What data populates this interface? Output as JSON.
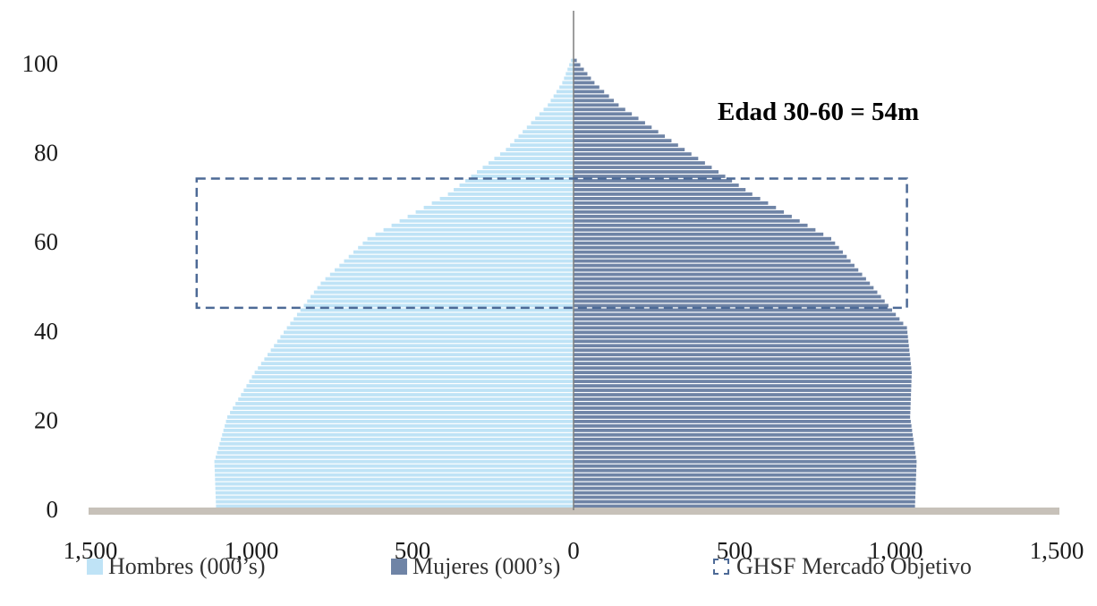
{
  "chart_data": {
    "type": "bar",
    "orientation": "horizontal-population-pyramid",
    "title": "",
    "xlabel": "",
    "ylabel": "",
    "xlim": [
      -1500,
      1500
    ],
    "ylim": [
      0,
      105
    ],
    "x_ticks": [
      {
        "value": -1500,
        "label": "1,500"
      },
      {
        "value": -1000,
        "label": "1,000"
      },
      {
        "value": -500,
        "label": "500"
      },
      {
        "value": 0,
        "label": "0"
      },
      {
        "value": 500,
        "label": "500"
      },
      {
        "value": 1000,
        "label": "1,000"
      },
      {
        "value": 1500,
        "label": "1,500"
      }
    ],
    "y_ticks": [
      {
        "value": 0,
        "label": "0"
      },
      {
        "value": 20,
        "label": "20"
      },
      {
        "value": 40,
        "label": "40"
      },
      {
        "value": 60,
        "label": "60"
      },
      {
        "value": 80,
        "label": "80"
      },
      {
        "value": 100,
        "label": "100"
      }
    ],
    "age_profile": {
      "ages": [
        0,
        10,
        20,
        30,
        40,
        50,
        60,
        70,
        80,
        90,
        95,
        100
      ],
      "hombres": [
        1110,
        1115,
        1075,
        990,
        890,
        785,
        640,
        390,
        210,
        80,
        35,
        8
      ],
      "mujeres": [
        1060,
        1065,
        1045,
        1050,
        1035,
        920,
        800,
        555,
        345,
        140,
        65,
        10
      ]
    },
    "series": [
      {
        "name": "Hombres (000’s)",
        "color": "#bfe3f6",
        "side": "left"
      },
      {
        "name": "Mujeres (000’s)",
        "color": "#6f84a6",
        "side": "right"
      }
    ],
    "target_box": {
      "name": "GHSF Mercado Objetivo",
      "x_range": [
        -1170,
        1035
      ],
      "y_range": [
        45,
        74
      ],
      "color": "#4d6a96"
    },
    "annotation": "Edad 30-60 = 54m",
    "baseline_color": "#c7c1b9",
    "center_line_color": "#7f7f7f",
    "legend_position": "bottom"
  }
}
